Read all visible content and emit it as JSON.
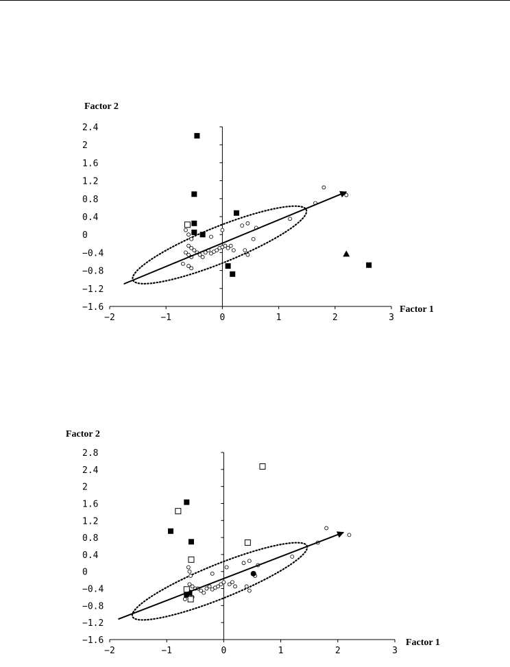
{
  "chart_data": [
    {
      "type": "scatter",
      "xlabel": "Factor 1",
      "ylabel": "Factor 2",
      "xlim": [
        -2,
        3
      ],
      "ylim": [
        -1.6,
        2.4
      ],
      "xticks": [
        -2,
        -1,
        0,
        1,
        2,
        3
      ],
      "xtick_labels": [
        "−2",
        "−1",
        "0",
        "1",
        "2",
        "3"
      ],
      "yticks": [
        2.4,
        2,
        1.6,
        1.2,
        0.8,
        0.4,
        0,
        -0.4,
        -0.8,
        -1.2,
        -1.6
      ],
      "ytick_labels": [
        "2.4",
        "2",
        "1.6",
        "1.2",
        "0.8",
        "0.4",
        "0",
        "−0.4",
        "−0.8",
        "−1.2",
        "−1.6"
      ],
      "grid": false,
      "arrow": {
        "from": [
          -1.75,
          -1.1
        ],
        "to": [
          2.2,
          0.95
        ]
      },
      "ellipse": {
        "center": [
          -0.05,
          -0.23
        ],
        "rx": 1.66,
        "ry": 0.4,
        "angle_deg": -22
      },
      "series": [
        {
          "marker": "open-circle",
          "points": [
            [
              -0.65,
              0.1
            ],
            [
              -0.6,
              0.0
            ],
            [
              -0.55,
              -0.1
            ],
            [
              -0.6,
              -0.25
            ],
            [
              -0.55,
              -0.3
            ],
            [
              -0.5,
              -0.35
            ],
            [
              -0.65,
              -0.4
            ],
            [
              -0.6,
              -0.45
            ],
            [
              -0.55,
              -0.5
            ],
            [
              -0.7,
              -0.65
            ],
            [
              -0.6,
              -0.7
            ],
            [
              -0.55,
              -0.75
            ],
            [
              -0.45,
              -0.4
            ],
            [
              -0.4,
              -0.45
            ],
            [
              -0.35,
              -0.5
            ],
            [
              -0.3,
              -0.4
            ],
            [
              -0.25,
              -0.35
            ],
            [
              -0.2,
              -0.42
            ],
            [
              -0.15,
              -0.38
            ],
            [
              -0.1,
              -0.35
            ],
            [
              -0.05,
              -0.3
            ],
            [
              0.0,
              -0.28
            ],
            [
              0.05,
              -0.25
            ],
            [
              -0.2,
              -0.05
            ],
            [
              0.0,
              0.1
            ],
            [
              0.1,
              -0.3
            ],
            [
              0.15,
              -0.25
            ],
            [
              0.2,
              -0.35
            ],
            [
              0.35,
              0.2
            ],
            [
              0.45,
              0.25
            ],
            [
              0.55,
              -0.1
            ],
            [
              0.4,
              -0.35
            ],
            [
              0.45,
              -0.45
            ],
            [
              0.6,
              0.15
            ],
            [
              1.2,
              0.35
            ],
            [
              1.65,
              0.7
            ],
            [
              1.8,
              1.05
            ],
            [
              2.2,
              0.88
            ]
          ]
        },
        {
          "marker": "filled-square",
          "points": [
            [
              -0.45,
              2.2
            ],
            [
              -0.5,
              0.9
            ],
            [
              -0.5,
              0.25
            ],
            [
              -0.5,
              0.05
            ],
            [
              -0.35,
              0.0
            ],
            [
              0.25,
              0.48
            ],
            [
              0.1,
              -0.7
            ],
            [
              0.18,
              -0.88
            ],
            [
              2.6,
              -0.68
            ]
          ]
        },
        {
          "marker": "open-square",
          "points": [
            [
              -0.62,
              0.22
            ]
          ]
        },
        {
          "marker": "filled-triangle",
          "points": [
            [
              2.2,
              -0.43
            ]
          ]
        }
      ]
    },
    {
      "type": "scatter",
      "xlabel": "Factor 1",
      "ylabel": "Factor 2",
      "xlim": [
        -2,
        3
      ],
      "ylim": [
        -1.6,
        2.8
      ],
      "xticks": [
        -2,
        -1,
        0,
        1,
        2,
        3
      ],
      "xtick_labels": [
        "−2",
        "−1",
        "0",
        "1",
        "2",
        "3"
      ],
      "yticks": [
        2.8,
        2.4,
        2,
        1.6,
        1.2,
        0.8,
        0.4,
        0,
        -0.4,
        -0.8,
        -1.2,
        -1.6
      ],
      "ytick_labels": [
        "2.8",
        "2.4",
        "2",
        "1.6",
        "1.2",
        "0.8",
        "0.4",
        "0",
        "−0.4",
        "−0.8",
        "−1.2",
        "−1.6"
      ],
      "grid": false,
      "arrow": {
        "from": [
          -1.85,
          -1.12
        ],
        "to": [
          2.1,
          0.92
        ]
      },
      "ellipse": {
        "center": [
          -0.07,
          -0.23
        ],
        "rx": 1.65,
        "ry": 0.4,
        "angle_deg": -22
      },
      "series": [
        {
          "marker": "open-circle",
          "points": [
            [
              -0.62,
              0.1
            ],
            [
              -0.6,
              0.0
            ],
            [
              -0.58,
              -0.1
            ],
            [
              -0.6,
              -0.3
            ],
            [
              -0.55,
              -0.35
            ],
            [
              -0.5,
              -0.4
            ],
            [
              -0.62,
              -0.45
            ],
            [
              -0.6,
              -0.55
            ],
            [
              -0.55,
              -0.6
            ],
            [
              -0.68,
              -0.65
            ],
            [
              -0.45,
              -0.4
            ],
            [
              -0.4,
              -0.45
            ],
            [
              -0.35,
              -0.5
            ],
            [
              -0.3,
              -0.4
            ],
            [
              -0.25,
              -0.35
            ],
            [
              -0.2,
              -0.42
            ],
            [
              -0.15,
              -0.38
            ],
            [
              -0.1,
              -0.35
            ],
            [
              -0.05,
              -0.3
            ],
            [
              0.0,
              -0.25
            ],
            [
              0.05,
              0.1
            ],
            [
              -0.2,
              -0.05
            ],
            [
              0.1,
              -0.3
            ],
            [
              0.15,
              -0.25
            ],
            [
              0.2,
              -0.35
            ],
            [
              0.35,
              0.2
            ],
            [
              0.45,
              0.25
            ],
            [
              0.55,
              -0.1
            ],
            [
              0.4,
              -0.35
            ],
            [
              0.45,
              -0.45
            ],
            [
              0.6,
              0.15
            ],
            [
              1.2,
              0.35
            ],
            [
              1.65,
              0.68
            ],
            [
              1.8,
              1.02
            ],
            [
              2.2,
              0.86
            ]
          ]
        },
        {
          "marker": "filled-square",
          "points": [
            [
              -0.65,
              1.63
            ],
            [
              -0.93,
              0.95
            ],
            [
              -0.57,
              0.7
            ],
            [
              -0.6,
              -0.5
            ],
            [
              -0.65,
              -0.55
            ]
          ]
        },
        {
          "marker": "open-square",
          "points": [
            [
              0.68,
              2.47
            ],
            [
              -0.8,
              1.42
            ],
            [
              0.42,
              0.68
            ],
            [
              -0.57,
              0.28
            ],
            [
              -0.65,
              -0.42
            ],
            [
              -0.58,
              -0.65
            ]
          ]
        },
        {
          "marker": "filled-circle",
          "points": [
            [
              0.52,
              -0.05
            ]
          ]
        }
      ]
    }
  ]
}
